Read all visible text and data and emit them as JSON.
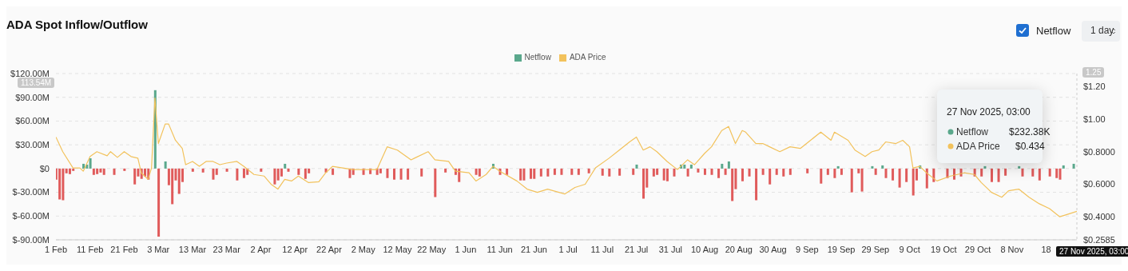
{
  "chart_data": {
    "type": "bar",
    "title": "ADA Spot Inflow/Outflow",
    "xlim": [
      "2025-02-01",
      "2025-11-27"
    ],
    "xticks": [
      {
        "value": "2025-02-01",
        "label": "1 Feb"
      },
      {
        "value": "2025-02-11",
        "label": "11 Feb"
      },
      {
        "value": "2025-02-21",
        "label": "21 Feb"
      },
      {
        "value": "2025-03-03",
        "label": "3 Mar"
      },
      {
        "value": "2025-03-13",
        "label": "13 Mar"
      },
      {
        "value": "2025-03-23",
        "label": "23 Mar"
      },
      {
        "value": "2025-04-02",
        "label": "2 Apr"
      },
      {
        "value": "2025-04-12",
        "label": "12 Apr"
      },
      {
        "value": "2025-04-22",
        "label": "22 Apr"
      },
      {
        "value": "2025-05-02",
        "label": "2 May"
      },
      {
        "value": "2025-05-12",
        "label": "12 May"
      },
      {
        "value": "2025-05-22",
        "label": "22 May"
      },
      {
        "value": "2025-06-01",
        "label": "1 Jun"
      },
      {
        "value": "2025-06-11",
        "label": "11 Jun"
      },
      {
        "value": "2025-06-21",
        "label": "21 Jun"
      },
      {
        "value": "2025-07-01",
        "label": "1 Jul"
      },
      {
        "value": "2025-07-11",
        "label": "11 Jul"
      },
      {
        "value": "2025-07-21",
        "label": "21 Jul"
      },
      {
        "value": "2025-07-31",
        "label": "31 Jul"
      },
      {
        "value": "2025-08-10",
        "label": "10 Aug"
      },
      {
        "value": "2025-08-20",
        "label": "20 Aug"
      },
      {
        "value": "2025-08-30",
        "label": "30 Aug"
      },
      {
        "value": "2025-09-09",
        "label": "9 Sep"
      },
      {
        "value": "2025-09-19",
        "label": "19 Sep"
      },
      {
        "value": "2025-09-29",
        "label": "29 Sep"
      },
      {
        "value": "2025-10-09",
        "label": "9 Oct"
      },
      {
        "value": "2025-10-19",
        "label": "19 Oct"
      },
      {
        "value": "2025-10-29",
        "label": "29 Oct"
      },
      {
        "value": "2025-11-08",
        "label": "8 Nov"
      },
      {
        "value": "2025-11-18",
        "label": "18"
      }
    ],
    "ylim": [
      -90,
      120
    ],
    "yticks": [
      {
        "value": -90,
        "label": "$-90.00M"
      },
      {
        "value": -60,
        "label": "$-60.00M"
      },
      {
        "value": -30,
        "label": "$-30.00M"
      },
      {
        "value": 0,
        "label": "$0"
      },
      {
        "value": 30,
        "label": "$30.00M"
      },
      {
        "value": 60,
        "label": "$60.00M"
      },
      {
        "value": 90,
        "label": "$90.00M"
      },
      {
        "value": 120,
        "label": "$120.00M"
      }
    ],
    "y2lim": [
      0.2585,
      1.28
    ],
    "y2ticks": [
      {
        "value": 0.2585,
        "label": "$0.2585"
      },
      {
        "value": 0.4,
        "label": "$0.4000"
      },
      {
        "value": 0.6,
        "label": "$0.6000"
      },
      {
        "value": 0.8,
        "label": "$0.8000"
      },
      {
        "value": 1.0,
        "label": "$1.00"
      },
      {
        "value": 1.2,
        "label": "$1.20"
      }
    ],
    "grid": "y",
    "legend": "top",
    "series": [
      {
        "name": "Netflow",
        "color": "#5aa88c",
        "x": [
          "2025-02-01",
          "2025-02-02",
          "2025-02-03",
          "2025-02-04",
          "2025-02-05",
          "2025-02-06",
          "2025-02-09",
          "2025-02-10",
          "2025-02-11",
          "2025-02-12",
          "2025-02-13",
          "2025-02-14",
          "2025-02-15",
          "2025-02-18",
          "2025-02-21",
          "2025-02-24",
          "2025-02-25",
          "2025-02-26",
          "2025-02-27",
          "2025-02-28",
          "2025-03-02",
          "2025-03-03",
          "2025-03-05",
          "2025-03-06",
          "2025-03-07",
          "2025-03-08",
          "2025-03-09",
          "2025-03-10",
          "2025-03-13",
          "2025-03-16",
          "2025-03-19",
          "2025-03-20",
          "2025-03-23",
          "2025-03-26",
          "2025-03-28",
          "2025-03-29",
          "2025-04-02",
          "2025-04-06",
          "2025-04-07",
          "2025-04-08",
          "2025-04-09",
          "2025-04-10",
          "2025-04-13",
          "2025-04-15",
          "2025-04-16",
          "2025-04-21",
          "2025-04-23",
          "2025-04-28",
          "2025-04-29",
          "2025-05-02",
          "2025-05-04",
          "2025-05-06",
          "2025-05-07",
          "2025-05-09",
          "2025-05-11",
          "2025-05-13",
          "2025-05-15",
          "2025-05-19",
          "2025-05-23",
          "2025-05-26",
          "2025-05-29",
          "2025-05-30",
          "2025-06-04",
          "2025-06-05",
          "2025-06-09",
          "2025-06-11",
          "2025-06-13",
          "2025-06-17",
          "2025-06-18",
          "2025-06-20",
          "2025-06-21",
          "2025-06-23",
          "2025-06-25",
          "2025-06-27",
          "2025-06-29",
          "2025-07-02",
          "2025-07-04",
          "2025-07-07",
          "2025-07-11",
          "2025-07-13",
          "2025-07-16",
          "2025-07-20",
          "2025-07-21",
          "2025-07-23",
          "2025-07-24",
          "2025-07-26",
          "2025-07-27",
          "2025-07-29",
          "2025-07-30",
          "2025-08-01",
          "2025-08-03",
          "2025-08-04",
          "2025-08-05",
          "2025-08-06",
          "2025-08-08",
          "2025-08-10",
          "2025-08-12",
          "2025-08-14",
          "2025-08-15",
          "2025-08-16",
          "2025-08-17",
          "2025-08-18",
          "2025-08-19",
          "2025-08-21",
          "2025-08-23",
          "2025-08-25",
          "2025-08-27",
          "2025-08-29",
          "2025-08-31",
          "2025-09-02",
          "2025-09-04",
          "2025-09-09",
          "2025-09-13",
          "2025-09-15",
          "2025-09-17",
          "2025-09-18",
          "2025-09-19",
          "2025-09-22",
          "2025-09-24",
          "2025-09-25",
          "2025-09-28",
          "2025-09-29",
          "2025-10-01",
          "2025-10-02",
          "2025-10-04",
          "2025-10-06",
          "2025-10-08",
          "2025-10-10",
          "2025-10-11",
          "2025-10-12",
          "2025-10-14",
          "2025-10-16",
          "2025-10-20",
          "2025-10-22",
          "2025-10-24",
          "2025-10-28",
          "2025-10-30",
          "2025-10-31",
          "2025-11-02",
          "2025-11-04",
          "2025-11-06",
          "2025-11-10",
          "2025-11-11",
          "2025-11-14",
          "2025-11-16",
          "2025-11-19",
          "2025-11-21",
          "2025-11-22",
          "2025-11-23",
          "2025-11-26",
          "2025-11-27"
        ],
        "values": [
          -14,
          -39,
          -40,
          -6,
          -7,
          -3,
          6,
          5,
          13,
          -8,
          -7,
          -5,
          -8,
          -8,
          -3,
          -20,
          -10,
          -13,
          -10,
          -14,
          99,
          -86,
          9,
          -21,
          -45,
          -15,
          -32,
          -17,
          -4,
          -5,
          -14,
          -8,
          -4,
          -15,
          -12,
          -8,
          -4,
          -20,
          -15,
          -10,
          6,
          -4,
          -8,
          -13,
          -6,
          -5,
          -8,
          -12,
          -8,
          -8,
          -7,
          -8,
          -6,
          -12,
          -14,
          -14,
          -14,
          -10,
          -36,
          -5,
          -8,
          -17,
          -8,
          -10,
          6,
          -8,
          -8,
          -15,
          -15,
          -13,
          -13,
          -10,
          -10,
          -8,
          -8,
          -8,
          -8,
          -6,
          -9,
          -10,
          -9,
          -8,
          5,
          -38,
          -24,
          -10,
          -8,
          -15,
          -16,
          -10,
          5,
          5,
          -10,
          5,
          -5,
          -8,
          -8,
          -12,
          6,
          -8,
          9,
          -41,
          -26,
          -16,
          -10,
          -40,
          -8,
          -20,
          -8,
          -10,
          -8,
          -6,
          -19,
          -8,
          -12,
          3,
          -8,
          -30,
          -6,
          -29,
          3,
          -8,
          4,
          -12,
          -15,
          -24,
          -17,
          -34,
          -15,
          4,
          -25,
          -17,
          -12,
          -14,
          -10,
          -10,
          -10,
          3,
          -17,
          -17,
          -9,
          3,
          -10,
          -10,
          -15,
          -10,
          -12,
          -14,
          4,
          6,
          0
        ],
        "colors": [
          "#e05b5b",
          "#e05b5b",
          "#e05b5b",
          "#e05b5b",
          "#e05b5b",
          "#e05b5b",
          "#5aa88c",
          "#5aa88c",
          "#5aa88c",
          "#e05b5b",
          "#e05b5b",
          "#e05b5b",
          "#e05b5b",
          "#e05b5b",
          "#e05b5b",
          "#e05b5b",
          "#e05b5b",
          "#e05b5b",
          "#e05b5b",
          "#e05b5b",
          "#5aa88c",
          "#e05b5b",
          "#5aa88c",
          "#e05b5b",
          "#e05b5b",
          "#e05b5b",
          "#e05b5b",
          "#e05b5b",
          "#e05b5b",
          "#e05b5b",
          "#e05b5b",
          "#e05b5b",
          "#e05b5b",
          "#e05b5b",
          "#e05b5b",
          "#e05b5b",
          "#e05b5b",
          "#e05b5b",
          "#e05b5b",
          "#e05b5b",
          "#5aa88c",
          "#e05b5b",
          "#e05b5b",
          "#e05b5b",
          "#e05b5b",
          "#e05b5b",
          "#e05b5b",
          "#e05b5b",
          "#e05b5b",
          "#e05b5b",
          "#e05b5b",
          "#e05b5b",
          "#e05b5b",
          "#e05b5b",
          "#e05b5b",
          "#e05b5b",
          "#e05b5b",
          "#e05b5b",
          "#e05b5b",
          "#e05b5b",
          "#e05b5b",
          "#e05b5b",
          "#e05b5b",
          "#e05b5b",
          "#5aa88c",
          "#e05b5b",
          "#e05b5b",
          "#e05b5b",
          "#e05b5b",
          "#e05b5b",
          "#e05b5b",
          "#e05b5b",
          "#e05b5b",
          "#e05b5b",
          "#e05b5b",
          "#e05b5b",
          "#e05b5b",
          "#e05b5b",
          "#e05b5b",
          "#e05b5b",
          "#e05b5b",
          "#e05b5b",
          "#5aa88c",
          "#e05b5b",
          "#e05b5b",
          "#e05b5b",
          "#e05b5b",
          "#e05b5b",
          "#e05b5b",
          "#e05b5b",
          "#5aa88c",
          "#5aa88c",
          "#e05b5b",
          "#5aa88c",
          "#e05b5b",
          "#e05b5b",
          "#e05b5b",
          "#e05b5b",
          "#5aa88c",
          "#e05b5b",
          "#5aa88c",
          "#e05b5b",
          "#e05b5b",
          "#e05b5b",
          "#e05b5b",
          "#e05b5b",
          "#e05b5b",
          "#e05b5b",
          "#e05b5b",
          "#e05b5b",
          "#e05b5b",
          "#e05b5b",
          "#e05b5b",
          "#e05b5b",
          "#e05b5b",
          "#5aa88c",
          "#e05b5b",
          "#e05b5b",
          "#e05b5b",
          "#e05b5b",
          "#5aa88c",
          "#e05b5b",
          "#5aa88c",
          "#e05b5b",
          "#e05b5b",
          "#e05b5b",
          "#e05b5b",
          "#e05b5b",
          "#e05b5b",
          "#5aa88c",
          "#e05b5b",
          "#e05b5b",
          "#e05b5b",
          "#e05b5b",
          "#e05b5b",
          "#e05b5b",
          "#e05b5b",
          "#5aa88c",
          "#e05b5b",
          "#e05b5b",
          "#e05b5b",
          "#5aa88c",
          "#e05b5b",
          "#e05b5b",
          "#e05b5b",
          "#e05b5b",
          "#e05b5b",
          "#e05b5b",
          "#5aa88c",
          "#5aa88c",
          "#5aa88c"
        ]
      },
      {
        "name": "ADA Price",
        "type": "line",
        "axis": "y2",
        "color": "#f2c25c",
        "x": [
          "2025-02-01",
          "2025-02-03",
          "2025-02-06",
          "2025-02-08",
          "2025-02-09",
          "2025-02-11",
          "2025-02-13",
          "2025-02-16",
          "2025-02-17",
          "2025-02-19",
          "2025-02-21",
          "2025-02-23",
          "2025-02-25",
          "2025-02-26",
          "2025-02-27",
          "2025-02-28",
          "2025-03-01",
          "2025-03-02",
          "2025-03-03",
          "2025-03-05",
          "2025-03-06",
          "2025-03-08",
          "2025-03-10",
          "2025-03-11",
          "2025-03-13",
          "2025-03-15",
          "2025-03-17",
          "2025-03-19",
          "2025-03-21",
          "2025-03-23",
          "2025-03-26",
          "2025-03-28",
          "2025-03-31",
          "2025-04-03",
          "2025-04-05",
          "2025-04-07",
          "2025-04-09",
          "2025-04-11",
          "2025-04-13",
          "2025-04-16",
          "2025-04-19",
          "2025-04-21",
          "2025-04-23",
          "2025-04-26",
          "2025-04-29",
          "2025-05-02",
          "2025-05-06",
          "2025-05-09",
          "2025-05-12",
          "2025-05-16",
          "2025-05-17",
          "2025-05-21",
          "2025-05-23",
          "2025-05-27",
          "2025-05-29",
          "2025-06-02",
          "2025-06-04",
          "2025-06-07",
          "2025-06-09",
          "2025-06-11",
          "2025-06-16",
          "2025-06-19",
          "2025-06-22",
          "2025-06-25",
          "2025-06-30",
          "2025-07-03",
          "2025-07-06",
          "2025-07-09",
          "2025-07-13",
          "2025-07-16",
          "2025-07-19",
          "2025-07-21",
          "2025-07-23",
          "2025-07-25",
          "2025-07-27",
          "2025-07-30",
          "2025-08-02",
          "2025-08-05",
          "2025-08-07",
          "2025-08-10",
          "2025-08-12",
          "2025-08-15",
          "2025-08-17",
          "2025-08-19",
          "2025-08-21",
          "2025-08-22",
          "2025-08-25",
          "2025-08-27",
          "2025-08-29",
          "2025-09-01",
          "2025-09-04",
          "2025-09-07",
          "2025-09-10",
          "2025-09-13",
          "2025-09-16",
          "2025-09-17",
          "2025-09-21",
          "2025-09-23",
          "2025-09-26",
          "2025-09-28",
          "2025-09-30",
          "2025-10-02",
          "2025-10-05",
          "2025-10-07",
          "2025-10-09",
          "2025-10-10",
          "2025-10-12",
          "2025-10-14",
          "2025-10-17",
          "2025-10-21",
          "2025-10-25",
          "2025-10-28",
          "2025-10-30",
          "2025-11-02",
          "2025-11-05",
          "2025-11-07",
          "2025-11-10",
          "2025-11-13",
          "2025-11-16",
          "2025-11-19",
          "2025-11-22",
          "2025-11-25",
          "2025-11-27"
        ],
        "values": [
          0.89,
          0.8,
          0.7,
          0.7,
          0.68,
          0.77,
          0.8,
          0.775,
          0.8,
          0.765,
          0.8,
          0.77,
          0.76,
          0.67,
          0.65,
          0.63,
          0.7,
          1.13,
          0.85,
          0.97,
          0.97,
          0.87,
          0.82,
          0.72,
          0.74,
          0.71,
          0.74,
          0.74,
          0.72,
          0.73,
          0.74,
          0.71,
          0.66,
          0.65,
          0.6,
          0.57,
          0.63,
          0.62,
          0.65,
          0.61,
          0.615,
          0.67,
          0.71,
          0.7,
          0.69,
          0.69,
          0.69,
          0.83,
          0.81,
          0.75,
          0.76,
          0.8,
          0.75,
          0.74,
          0.68,
          0.67,
          0.62,
          0.66,
          0.71,
          0.68,
          0.62,
          0.57,
          0.55,
          0.57,
          0.54,
          0.58,
          0.6,
          0.7,
          0.76,
          0.81,
          0.86,
          0.89,
          0.81,
          0.83,
          0.8,
          0.74,
          0.69,
          0.75,
          0.72,
          0.79,
          0.83,
          0.93,
          0.955,
          0.85,
          0.93,
          0.92,
          0.85,
          0.85,
          0.83,
          0.8,
          0.83,
          0.82,
          0.87,
          0.92,
          0.87,
          0.92,
          0.87,
          0.81,
          0.77,
          0.8,
          0.81,
          0.86,
          0.85,
          0.87,
          0.83,
          0.7,
          0.71,
          0.67,
          0.62,
          0.65,
          0.67,
          0.66,
          0.61,
          0.55,
          0.52,
          0.56,
          0.57,
          0.52,
          0.48,
          0.45,
          0.4,
          0.42,
          0.434
        ]
      }
    ],
    "annotations": [
      "Netflow",
      "1 day",
      "27 Nov 2025, 03:00",
      "Netflow",
      "$232.38K",
      "ADA Price",
      "$0.434",
      "113.54M",
      "1.25",
      "27 Nov 2025, 03:00"
    ]
  }
}
